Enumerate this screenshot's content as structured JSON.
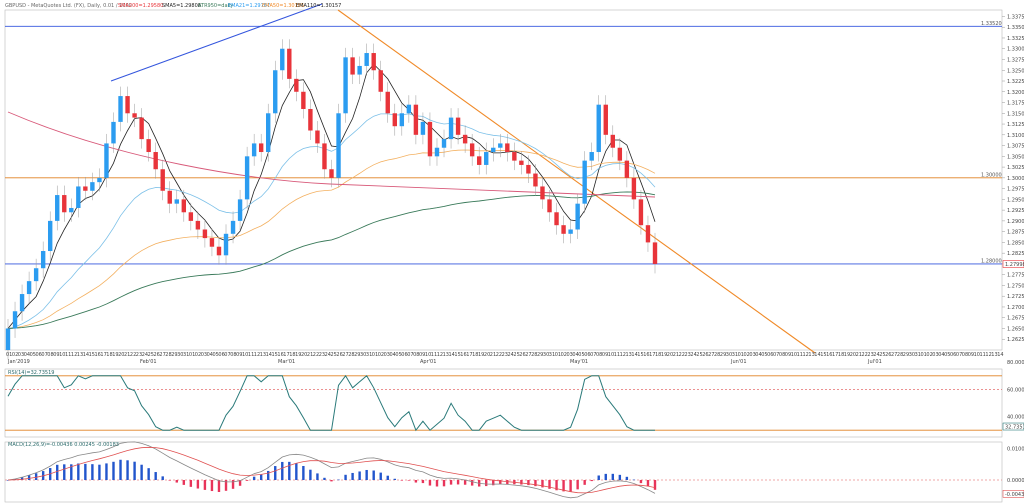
{
  "header": {
    "symbol": "GBPUSD - MetaQuotes Ltd. (FX), Daily, 0.01 / 1000",
    "sma200": "SMA200=1.29580",
    "sma5": "SMA5=1.29808",
    "atr": "ATR950=daily",
    "ema21": "EMA21=1.29767",
    "ema50": "EMA50=1.30185",
    "ema110": "EMA110=1.30157"
  },
  "price_axis": {
    "ticks": [
      "1.33750",
      "1.33500",
      "1.33250",
      "1.33000",
      "1.32750",
      "1.32500",
      "1.32250",
      "1.32000",
      "1.31750",
      "1.31500",
      "1.31250",
      "1.31000",
      "1.30750",
      "1.30500",
      "1.30250",
      "1.30000",
      "1.29750",
      "1.29500",
      "1.29250",
      "1.29000",
      "1.28750",
      "1.28500",
      "1.28250",
      "1.28000",
      "1.27750",
      "1.27500",
      "1.27250",
      "1.27000",
      "1.26750",
      "1.26500",
      "1.26250"
    ],
    "last_price": "1.27998"
  },
  "levels": [
    {
      "label": "1.33520",
      "price": 1.3352,
      "color": "#3355dd"
    },
    {
      "label": "1.30000",
      "price": 1.3,
      "color": "#e08020"
    },
    {
      "label": "1.28000",
      "price": 1.28,
      "color": "#3355dd"
    }
  ],
  "months": [
    "Jan'2019",
    "Feb'01",
    "Mar'01",
    "Apr'01",
    "May'01",
    "Jun'01",
    "Jul'01"
  ],
  "rsi": {
    "label": "RSI(14)=32.73519",
    "ticks": [
      "80.00000",
      "60.00000",
      "40.00000"
    ],
    "last": "32.73519",
    "levels": [
      70,
      60,
      30
    ]
  },
  "macd": {
    "label": "MACD(12,26,9)=-0.00436 0.00245 -0.00183",
    "ticks": [
      "0.01000",
      "0.00000",
      "-0.01000"
    ],
    "last": "-0.00436"
  },
  "colors": {
    "bull": "#2b9cf0",
    "bear": "#e8343a",
    "trend_up": "#3355dd",
    "trend_down": "#f08a28",
    "sma200": "#d85a7a",
    "ema": "#3a7a5a"
  },
  "chart_data": {
    "type": "candlestick",
    "title": "GBPUSD, Daily",
    "ylim": [
      1.26,
      1.339
    ],
    "series_close": [
      1.265,
      1.269,
      1.273,
      1.276,
      1.279,
      1.283,
      1.29,
      1.296,
      1.292,
      1.293,
      1.298,
      1.297,
      1.299,
      1.3,
      1.308,
      1.313,
      1.319,
      1.315,
      1.314,
      1.309,
      1.306,
      1.302,
      1.297,
      1.294,
      1.295,
      1.292,
      1.29,
      1.288,
      1.286,
      1.284,
      1.282,
      1.287,
      1.29,
      1.295,
      1.305,
      1.308,
      1.306,
      1.315,
      1.325,
      1.33,
      1.323,
      1.32,
      1.316,
      1.311,
      1.308,
      1.302,
      1.3,
      1.315,
      1.328,
      1.324,
      1.326,
      1.329,
      1.325,
      1.32,
      1.315,
      1.312,
      1.315,
      1.317,
      1.31,
      1.313,
      1.305,
      1.307,
      1.309,
      1.314,
      1.31,
      1.308,
      1.305,
      1.303,
      1.306,
      1.307,
      1.308,
      1.306,
      1.304,
      1.303,
      1.301,
      1.298,
      1.295,
      1.292,
      1.289,
      1.287,
      1.288,
      1.294,
      1.304,
      1.306,
      1.317,
      1.31,
      1.307,
      1.304,
      1.3,
      1.295,
      1.289,
      1.285,
      1.28
    ]
  }
}
